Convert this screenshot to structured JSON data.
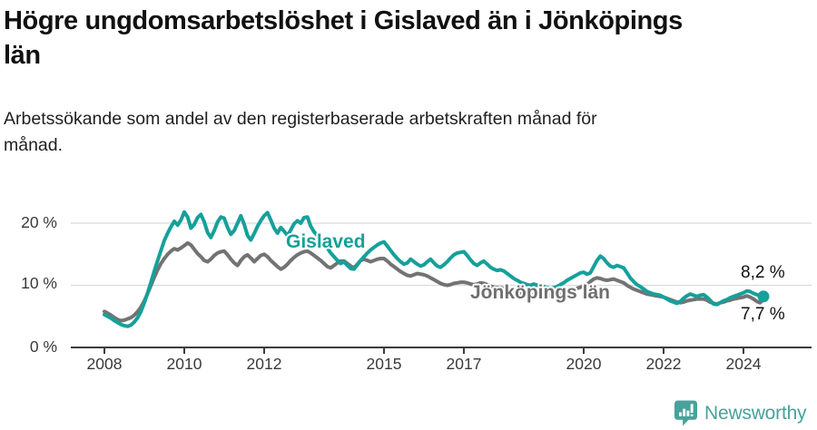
{
  "header": {
    "title": "Högre ungdomsarbetslöshet i Gislaved än i Jönköpings län",
    "subtitle": "Arbetssökande som andel av den registerbaserade arbetskraften månad för månad."
  },
  "chart_data": {
    "type": "line",
    "title": "Högre ungdomsarbetslöshet i Gislaved än i Jönköpings län",
    "xlabel": "",
    "ylabel": "",
    "x_start_year": 2008,
    "x_end": "2024-07",
    "x_unit": "month",
    "ylim": [
      0,
      22
    ],
    "grid": "horizontal",
    "grid_color": "#dcdcdc",
    "axis_color": "#3c3c3c",
    "legend": "inline-labels",
    "y_ticks": [
      {
        "value": 20,
        "label": "20 %"
      },
      {
        "value": 10,
        "label": "10 %"
      },
      {
        "value": 0,
        "label": "0 %"
      }
    ],
    "x_ticks": [
      {
        "year": 2008,
        "label": "2008"
      },
      {
        "year": 2010,
        "label": "2010"
      },
      {
        "year": 2012,
        "label": "2012"
      },
      {
        "year": 2015,
        "label": "2015"
      },
      {
        "year": 2017,
        "label": "2017"
      },
      {
        "year": 2020,
        "label": "2020"
      },
      {
        "year": 2022,
        "label": "2022"
      },
      {
        "year": 2024,
        "label": "2024"
      }
    ],
    "series": [
      {
        "id": "gislaved",
        "name": "Gislaved",
        "color": "#16a09a",
        "values": [
          5.3,
          5.0,
          4.7,
          4.3,
          4.0,
          3.7,
          3.5,
          3.4,
          3.6,
          4.1,
          4.8,
          5.8,
          7.2,
          8.8,
          10.5,
          12.3,
          14.0,
          15.6,
          17.2,
          18.4,
          19.4,
          20.3,
          19.7,
          20.5,
          21.8,
          21.0,
          19.2,
          19.8,
          20.9,
          21.4,
          20.2,
          18.5,
          17.7,
          18.8,
          20.2,
          21.0,
          20.8,
          19.3,
          18.2,
          18.8,
          20.0,
          21.2,
          19.8,
          18.0,
          17.3,
          18.3,
          19.5,
          20.4,
          21.2,
          21.7,
          20.5,
          19.2,
          18.4,
          19.3,
          18.7,
          18.0,
          18.9,
          19.9,
          20.4,
          20.0,
          20.9,
          21.0,
          19.5,
          18.6,
          18.0,
          17.4,
          16.8,
          16.0,
          15.2,
          14.6,
          14.0,
          13.5,
          13.8,
          13.2,
          12.7,
          12.6,
          13.3,
          14.0,
          14.6,
          15.2,
          15.7,
          16.1,
          16.5,
          16.8,
          17.0,
          16.3,
          15.6,
          14.9,
          14.3,
          13.8,
          13.4,
          13.6,
          14.2,
          13.8,
          13.4,
          13.1,
          13.3,
          13.8,
          14.2,
          13.6,
          13.1,
          12.9,
          13.3,
          13.8,
          14.4,
          14.9,
          15.2,
          15.3,
          15.4,
          14.8,
          14.1,
          13.5,
          13.2,
          13.6,
          13.9,
          13.4,
          12.9,
          12.6,
          12.4,
          12.5,
          12.3,
          11.9,
          11.5,
          11.1,
          10.8,
          10.5,
          10.3,
          10.1,
          10.0,
          10.2,
          10.0,
          9.9,
          9.8,
          9.6,
          9.5,
          9.6,
          9.8,
          10.1,
          10.4,
          10.8,
          11.1,
          11.4,
          11.7,
          12.0,
          12.1,
          11.8,
          12.0,
          13.0,
          14.0,
          14.7,
          14.3,
          13.6,
          13.1,
          12.9,
          13.2,
          13.0,
          12.8,
          12.0,
          11.2,
          10.6,
          10.1,
          9.8,
          9.4,
          9.0,
          8.8,
          8.6,
          8.5,
          8.4,
          8.1,
          7.8,
          7.5,
          7.3,
          7.1,
          7.4,
          7.9,
          8.3,
          8.6,
          8.4,
          8.2,
          8.4,
          8.5,
          8.1,
          7.6,
          7.0,
          6.9,
          7.2,
          7.5,
          7.7,
          8.0,
          8.2,
          8.4,
          8.6,
          8.8,
          9.1,
          9.0,
          8.7,
          8.5,
          8.3,
          8.2
        ]
      },
      {
        "id": "jonkopings-lan",
        "name": "Jönköpings län",
        "color": "#737373",
        "values": [
          5.8,
          5.5,
          5.2,
          4.8,
          4.5,
          4.3,
          4.4,
          4.6,
          4.8,
          5.2,
          5.8,
          6.5,
          7.5,
          8.7,
          10.0,
          11.3,
          12.5,
          13.5,
          14.3,
          15.0,
          15.5,
          15.9,
          15.7,
          16.0,
          16.4,
          16.8,
          16.5,
          15.8,
          15.1,
          14.6,
          14.0,
          13.8,
          14.2,
          14.8,
          15.2,
          15.4,
          15.5,
          14.9,
          14.2,
          13.6,
          13.2,
          14.0,
          14.6,
          14.9,
          14.4,
          13.8,
          14.3,
          14.8,
          15.0,
          14.6,
          14.0,
          13.5,
          13.0,
          12.6,
          12.9,
          13.4,
          14.0,
          14.5,
          14.9,
          15.2,
          15.4,
          15.5,
          15.2,
          14.8,
          14.4,
          14.0,
          13.5,
          13.0,
          12.8,
          13.2,
          13.6,
          13.9,
          13.9,
          13.5,
          13.1,
          12.8,
          13.4,
          14.0,
          14.2,
          14.0,
          13.8,
          14.0,
          14.2,
          14.3,
          14.3,
          13.9,
          13.4,
          13.0,
          12.6,
          12.2,
          11.9,
          11.6,
          11.5,
          11.7,
          11.9,
          11.8,
          11.7,
          11.5,
          11.2,
          10.9,
          10.6,
          10.3,
          10.1,
          10.0,
          10.1,
          10.3,
          10.4,
          10.5,
          10.5,
          10.4,
          10.2,
          10.1,
          10.2,
          10.4,
          10.3,
          10.1,
          9.9,
          9.7,
          9.6,
          9.6,
          9.5,
          9.3,
          9.1,
          8.9,
          8.7,
          8.6,
          8.5,
          8.4,
          8.4,
          8.5,
          8.6,
          8.6,
          8.6,
          8.5,
          8.4,
          8.3,
          8.4,
          8.5,
          8.7,
          8.9,
          9.1,
          9.3,
          9.5,
          9.7,
          9.9,
          10.1,
          10.6,
          11.0,
          11.2,
          11.1,
          10.9,
          10.8,
          10.9,
          11.0,
          10.8,
          10.6,
          10.4,
          10.0,
          9.7,
          9.4,
          9.2,
          9.0,
          8.8,
          8.6,
          8.5,
          8.4,
          8.3,
          8.2,
          8.1,
          7.9,
          7.7,
          7.5,
          7.3,
          7.2,
          7.3,
          7.5,
          7.6,
          7.7,
          7.8,
          7.8,
          7.8,
          7.6,
          7.3,
          7.1,
          7.0,
          7.2,
          7.3,
          7.5,
          7.6,
          7.8,
          7.9,
          8.0,
          8.1,
          8.3,
          8.1,
          7.8,
          7.4,
          7.2,
          7.7
        ]
      }
    ],
    "end_labels": [
      {
        "series": "Gislaved",
        "text": "8,2 %"
      },
      {
        "series": "Jönköpings län",
        "text": "7,7 %"
      }
    ]
  },
  "footer": {
    "brand": "Newsworthy",
    "brand_color": "#47a29b",
    "logo_icon": "bar-chart-speech-bubble"
  }
}
